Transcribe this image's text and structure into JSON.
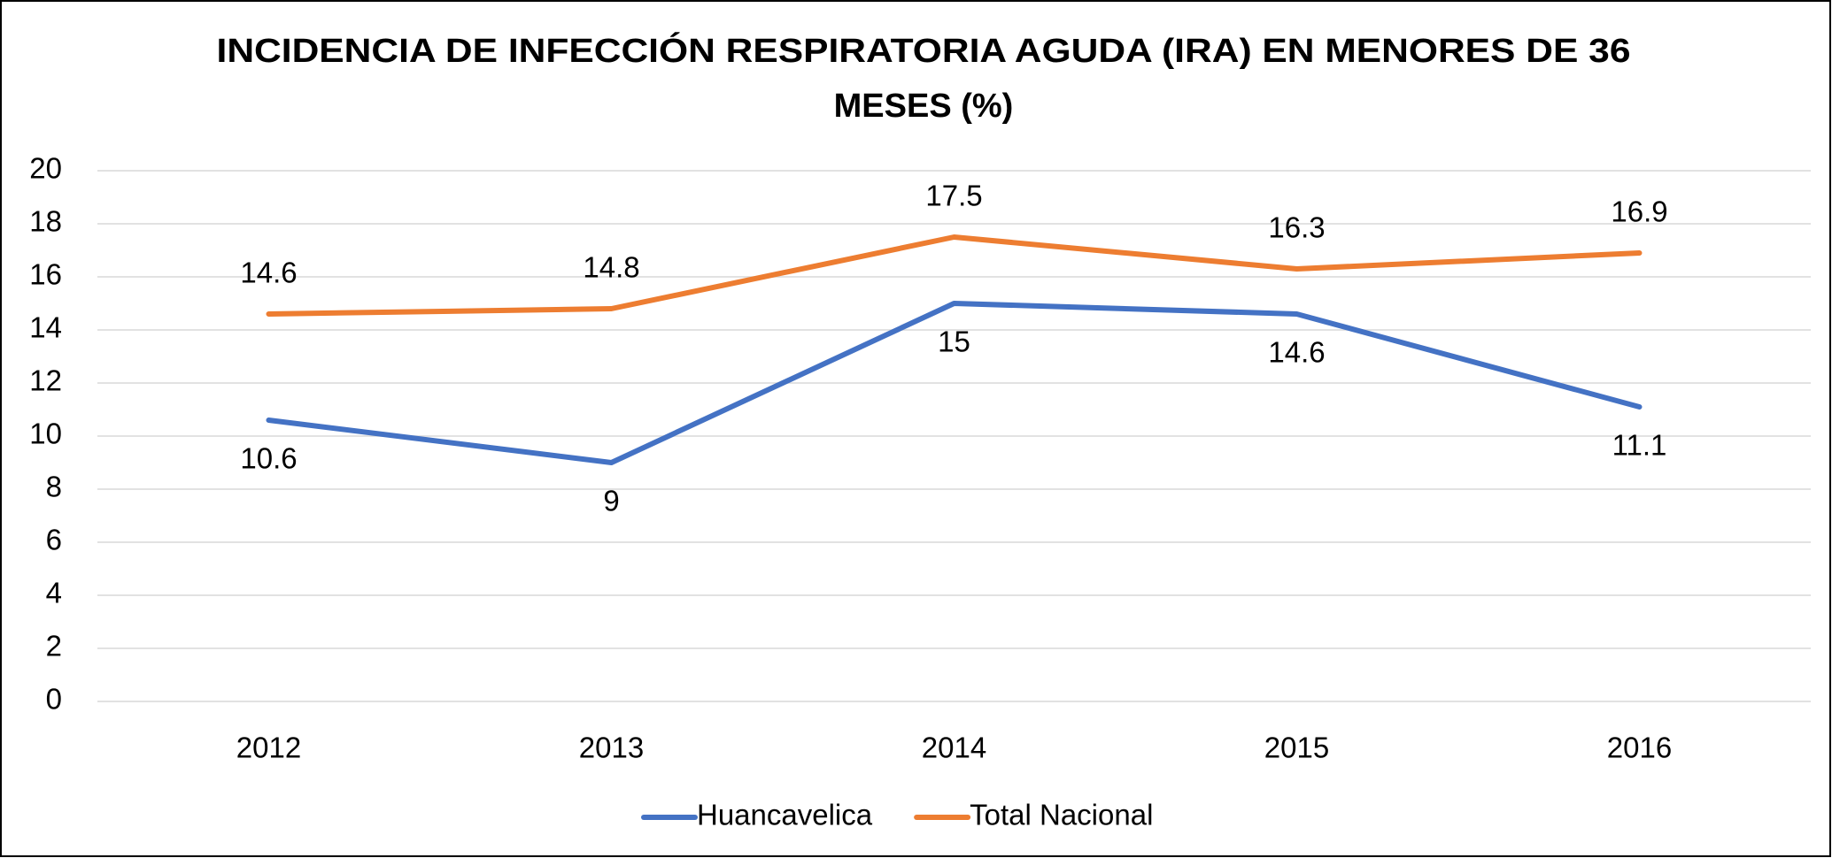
{
  "chart_data": {
    "type": "line",
    "title": [
      "INCIDENCIA DE INFECCIÓN RESPIRATORIA AGUDA (IRA) EN MENORES DE 36",
      "MESES (%)"
    ],
    "categories": [
      "2012",
      "2013",
      "2014",
      "2015",
      "2016"
    ],
    "series": [
      {
        "name": "Huancavelica",
        "color": "#4472c4",
        "values": [
          10.6,
          9,
          15,
          14.6,
          11.1
        ],
        "label_position": "below"
      },
      {
        "name": "Total Nacional",
        "color": "#ed7d31",
        "values": [
          14.6,
          14.8,
          17.5,
          16.3,
          16.9
        ],
        "label_position": "above"
      }
    ],
    "ylim": [
      0,
      20
    ],
    "yticks": [
      0,
      2,
      4,
      6,
      8,
      10,
      12,
      14,
      16,
      18,
      20
    ],
    "grid": true,
    "legend": "bottom"
  }
}
